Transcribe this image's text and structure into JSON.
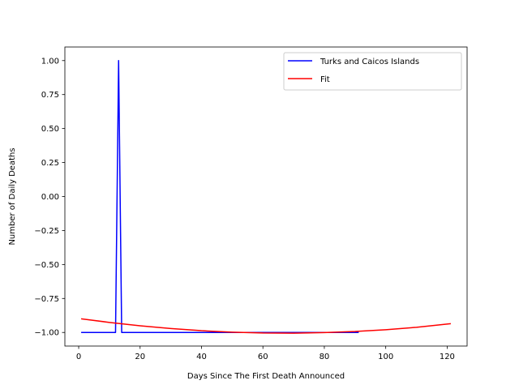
{
  "chart_data": {
    "type": "line",
    "title": "",
    "xlabel": "Days Since The First Death Announced",
    "ylabel": "Number of Daily Deaths",
    "xlim": [
      -4.5,
      126.5
    ],
    "ylim": [
      -1.1,
      1.1
    ],
    "xticks": [
      0,
      20,
      40,
      60,
      80,
      100,
      120
    ],
    "yticks": [
      -1.0,
      -0.75,
      -0.5,
      -0.25,
      0.0,
      0.25,
      0.5,
      0.75,
      1.0
    ],
    "ytick_labels": [
      "−1.00",
      "−0.75",
      "−0.50",
      "−0.25",
      "0.00",
      "0.25",
      "0.50",
      "0.75",
      "1.00"
    ],
    "xtick_labels": [
      "0",
      "20",
      "40",
      "60",
      "80",
      "100",
      "120"
    ],
    "grid": false,
    "legend_position": "top-right",
    "series": [
      {
        "name": "Turks and Caicos Islands",
        "color": "#0000ff",
        "x": [
          1,
          12,
          13,
          14,
          91
        ],
        "y": [
          -1,
          -1,
          1,
          -1,
          -1
        ]
      },
      {
        "name": "Fit",
        "color": "#ff0000",
        "x": [
          1,
          10,
          20,
          30,
          40,
          50,
          60,
          70,
          80,
          90,
          100,
          110,
          121
        ],
        "y": [
          -0.9,
          -0.926,
          -0.951,
          -0.971,
          -0.987,
          -0.998,
          -1.004,
          -1.005,
          -1.001,
          -0.993,
          -0.98,
          -0.962,
          -0.936
        ]
      }
    ]
  }
}
